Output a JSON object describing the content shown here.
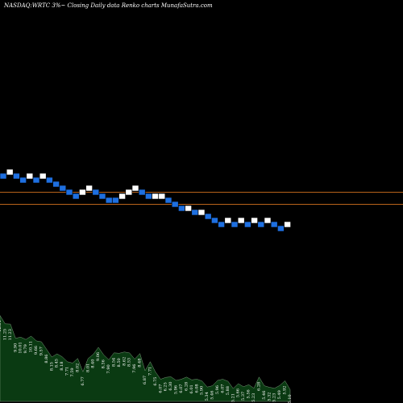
{
  "header": {
    "title": "NASDAQ:WRTC 3%~  Closing Daily data  Renko  charts MunafaSutra.com"
  },
  "colors": {
    "background": "#000000",
    "up_brick": "#ffffff",
    "down_brick": "#1e6fe0",
    "brick_border": "#000000",
    "reference_line": "#b8621b",
    "volume_fill": "#0a3a12",
    "volume_stroke": "#7a9a7a",
    "text": "#ffffff"
  },
  "chart_data": [
    {
      "type": "renko",
      "title": "NASDAQ:WRTC 3%~  Closing Daily data  Renko  charts MunafaSutra.com",
      "brick_size": "3%",
      "bricks": [
        {
          "dir": "down",
          "level": 0
        },
        {
          "dir": "up",
          "level": 1
        },
        {
          "dir": "down",
          "level": 0
        },
        {
          "dir": "down",
          "level": -1
        },
        {
          "dir": "up",
          "level": 0
        },
        {
          "dir": "down",
          "level": -1
        },
        {
          "dir": "up",
          "level": 0
        },
        {
          "dir": "down",
          "level": -1
        },
        {
          "dir": "down",
          "level": -2
        },
        {
          "dir": "down",
          "level": -3
        },
        {
          "dir": "down",
          "level": -4
        },
        {
          "dir": "down",
          "level": -5
        },
        {
          "dir": "up",
          "level": -4
        },
        {
          "dir": "up",
          "level": -3
        },
        {
          "dir": "down",
          "level": -4
        },
        {
          "dir": "down",
          "level": -5
        },
        {
          "dir": "down",
          "level": -6
        },
        {
          "dir": "down",
          "level": -6
        },
        {
          "dir": "up",
          "level": -5
        },
        {
          "dir": "up",
          "level": -4
        },
        {
          "dir": "up",
          "level": -3
        },
        {
          "dir": "down",
          "level": -4
        },
        {
          "dir": "down",
          "level": -5
        },
        {
          "dir": "up",
          "level": -5
        },
        {
          "dir": "up",
          "level": -5
        },
        {
          "dir": "down",
          "level": -6
        },
        {
          "dir": "down",
          "level": -7
        },
        {
          "dir": "down",
          "level": -8
        },
        {
          "dir": "up",
          "level": -8
        },
        {
          "dir": "down",
          "level": -9
        },
        {
          "dir": "up",
          "level": -9
        },
        {
          "dir": "down",
          "level": -10
        },
        {
          "dir": "down",
          "level": -11
        },
        {
          "dir": "down",
          "level": -12
        },
        {
          "dir": "up",
          "level": -11
        },
        {
          "dir": "down",
          "level": -12
        },
        {
          "dir": "up",
          "level": -11
        },
        {
          "dir": "down",
          "level": -12
        },
        {
          "dir": "up",
          "level": -11
        },
        {
          "dir": "down",
          "level": -12
        },
        {
          "dir": "up",
          "level": -11
        },
        {
          "dir": "down",
          "level": -12
        },
        {
          "dir": "down",
          "level": -13
        },
        {
          "dir": "up",
          "level": -12
        }
      ],
      "reference_lines": [
        {
          "level": -4.0
        },
        {
          "level": -7.0
        }
      ],
      "volume_labels": [
        "12.04",
        "11.25",
        "11.23",
        "9.90",
        "10.01",
        "9.79",
        "10.11",
        "9.66",
        "9.57",
        "8.86",
        "8.15",
        "8.45",
        "8.18",
        "7.71",
        "7.59",
        "8.02",
        "6.77",
        "8.01",
        "8.40",
        "9.06",
        "8.36",
        "7.90",
        "8.54",
        "8.50",
        "8.62",
        "8.53",
        "7.96",
        "8.48",
        "6.87",
        "7.71",
        "6.75",
        "6.07",
        "6.25",
        "6.30",
        "5.96",
        "6.07",
        "6.28",
        "6.01",
        "6.08",
        "5.90",
        "5.34",
        "5.46",
        "5.96",
        "6.07",
        "5.88",
        "5.21",
        "5.66",
        "5.37",
        "5.56",
        "5.23",
        "6.28",
        "5.46",
        "5.32",
        "5.23",
        "5.49",
        "5.92",
        "5.10"
      ],
      "volume_values": [
        12.04,
        11.25,
        11.23,
        9.9,
        10.01,
        9.79,
        10.11,
        9.66,
        9.57,
        8.86,
        8.15,
        8.45,
        8.18,
        7.71,
        7.59,
        8.02,
        6.77,
        8.01,
        8.4,
        9.06,
        8.36,
        7.9,
        8.54,
        8.5,
        8.62,
        8.53,
        7.96,
        8.48,
        6.87,
        7.71,
        6.75,
        6.07,
        6.25,
        6.3,
        5.96,
        6.07,
        6.28,
        6.01,
        6.08,
        5.9,
        5.34,
        5.46,
        5.96,
        6.07,
        5.88,
        5.21,
        5.66,
        5.37,
        5.56,
        5.23,
        6.28,
        5.46,
        5.32,
        5.23,
        5.49,
        5.92,
        5.1
      ],
      "volume_ylim": [
        4,
        13.5
      ]
    }
  ]
}
